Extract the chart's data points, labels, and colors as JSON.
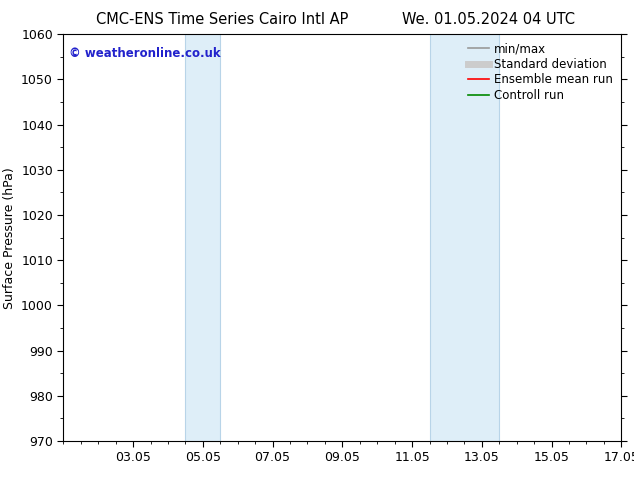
{
  "title_left": "CMC-ENS Time Series Cairo Intl AP",
  "title_right": "We. 01.05.2024 04 UTC",
  "ylabel": "Surface Pressure (hPa)",
  "ylim": [
    970,
    1060
  ],
  "yticks": [
    970,
    980,
    990,
    1000,
    1010,
    1020,
    1030,
    1040,
    1050,
    1060
  ],
  "xlim": [
    0,
    16
  ],
  "xtick_positions": [
    2,
    4,
    6,
    8,
    10,
    12,
    14,
    16
  ],
  "xtick_labels": [
    "03.05",
    "05.05",
    "07.05",
    "09.05",
    "11.05",
    "13.05",
    "15.05",
    "17.05"
  ],
  "shaded_bands": [
    {
      "xmin": 3.5,
      "xmax": 4.5
    },
    {
      "xmin": 10.5,
      "xmax": 12.5
    }
  ],
  "band_fill_color": "#deeef8",
  "band_edge_color": "#b8d4e8",
  "copyright_text": "© weatheronline.co.uk",
  "copyright_color": "#2222cc",
  "background_color": "#ffffff",
  "legend_entries": [
    {
      "label": "min/max",
      "color": "#999999",
      "lw": 1.2
    },
    {
      "label": "Standard deviation",
      "color": "#cccccc",
      "lw": 5
    },
    {
      "label": "Ensemble mean run",
      "color": "#ff0000",
      "lw": 1.2
    },
    {
      "label": "Controll run",
      "color": "#008800",
      "lw": 1.2
    }
  ],
  "title_fontsize": 10.5,
  "tick_fontsize": 9,
  "label_fontsize": 9,
  "legend_fontsize": 8.5
}
